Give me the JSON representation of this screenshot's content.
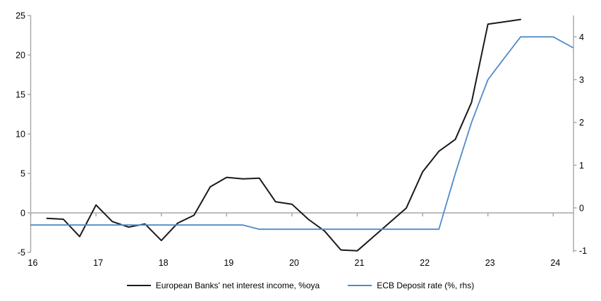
{
  "chart_data": {
    "type": "line",
    "title": "",
    "legend_position": "bottom",
    "grid": "zero-line-only",
    "colors": {
      "axis": "#a6a6a6",
      "text": "#000000",
      "background": "#ffffff"
    },
    "axes": {
      "x": {
        "min": 16,
        "max": 24.31,
        "ticks": [
          16,
          17,
          18,
          19,
          20,
          21,
          22,
          23,
          24
        ]
      },
      "left": {
        "min": -5,
        "max": 25,
        "ticks": [
          25,
          20,
          15,
          10,
          5,
          0,
          -5
        ]
      },
      "right": {
        "min": -1.04,
        "max": 4.5,
        "ticks": [
          4,
          3,
          2,
          1,
          0,
          -1
        ]
      }
    },
    "series": [
      {
        "name": "European Banks' net interest income, %oya",
        "axis": "left",
        "color": "#1a1a1a",
        "width": 2,
        "x": [
          16.25,
          16.5,
          16.75,
          17.0,
          17.25,
          17.5,
          17.75,
          18.0,
          18.25,
          18.5,
          18.75,
          19.0,
          19.25,
          19.5,
          19.75,
          20.0,
          20.25,
          20.5,
          20.75,
          21.0,
          21.25,
          21.5,
          21.75,
          22.0,
          22.25,
          22.5,
          22.75,
          23.0,
          23.25,
          23.5
        ],
        "values": [
          -0.7,
          -0.8,
          -3.0,
          1.0,
          -1.1,
          -1.8,
          -1.4,
          -3.5,
          -1.3,
          -0.3,
          3.3,
          4.5,
          4.3,
          4.4,
          1.4,
          1.1,
          -0.8,
          -2.3,
          -4.7,
          -4.8,
          -3.0,
          -1.2,
          0.6,
          5.2,
          7.8,
          9.3,
          14.0,
          23.9,
          24.2,
          24.5
        ]
      },
      {
        "name": "ECB Deposit rate (%, rhs)",
        "axis": "right",
        "color": "#4f8bc9",
        "width": 1.8,
        "x": [
          16.0,
          16.25,
          16.5,
          16.75,
          17.0,
          17.25,
          17.5,
          17.75,
          18.0,
          18.25,
          18.5,
          18.75,
          19.0,
          19.25,
          19.5,
          19.75,
          20.0,
          20.25,
          20.5,
          20.75,
          21.0,
          21.25,
          21.5,
          21.75,
          22.0,
          22.25,
          22.5,
          22.75,
          23.0,
          23.25,
          23.5,
          23.75,
          24.0,
          24.3
        ],
        "values": [
          -0.4,
          -0.4,
          -0.4,
          -0.4,
          -0.4,
          -0.4,
          -0.4,
          -0.4,
          -0.4,
          -0.4,
          -0.4,
          -0.4,
          -0.4,
          -0.4,
          -0.5,
          -0.5,
          -0.5,
          -0.5,
          -0.5,
          -0.5,
          -0.5,
          -0.5,
          -0.5,
          -0.5,
          -0.5,
          -0.5,
          0.8,
          2.0,
          3.0,
          3.5,
          4.0,
          4.0,
          4.0,
          3.75
        ]
      }
    ]
  },
  "legend": {
    "item_1": "European Banks' net interest income, %oya",
    "item_2": "ECB Deposit rate (%, rhs)"
  }
}
